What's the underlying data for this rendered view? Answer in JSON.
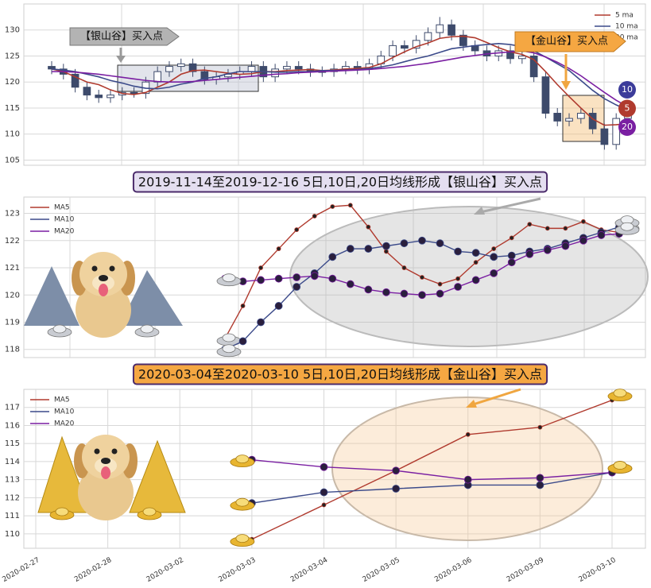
{
  "chart_data": [
    {
      "type": "candlestick",
      "open": [
        123,
        122.5,
        121.5,
        119,
        117.5,
        117,
        117.5,
        118,
        117.8,
        120,
        122,
        123,
        123.5,
        122,
        120.5,
        121,
        121.5,
        122,
        123,
        121,
        122.5,
        123,
        122.5,
        122,
        122,
        122.5,
        123,
        122.5,
        123.5,
        125,
        127,
        126.5,
        128,
        129.5,
        131,
        129,
        127,
        126,
        125,
        126,
        124.5,
        125,
        121,
        114,
        112.5,
        113,
        114,
        111,
        108,
        113
      ],
      "high": [
        124,
        123.5,
        122.5,
        120,
        118.5,
        118.5,
        119,
        119,
        121,
        123,
        124,
        124.5,
        124.5,
        123,
        122,
        122.5,
        123,
        124,
        124,
        123.5,
        124,
        124,
        123.5,
        123,
        123.5,
        124,
        124,
        124.5,
        126,
        128,
        128,
        129,
        130.5,
        132.5,
        132,
        130,
        128,
        127,
        127,
        127,
        126,
        126,
        122,
        115,
        114,
        115,
        115,
        112,
        114,
        115
      ],
      "low": [
        121.5,
        120.5,
        118,
        116.5,
        116,
        116,
        116.5,
        117,
        116.8,
        119,
        121,
        122,
        121,
        119.5,
        119.5,
        120,
        120.5,
        121,
        120,
        120,
        121.5,
        121.5,
        121,
        121,
        121,
        121.5,
        121.5,
        121.5,
        122.5,
        124,
        125.5,
        125.5,
        127,
        128.5,
        128,
        126,
        125,
        124,
        124,
        123.5,
        123.5,
        120,
        113,
        111.5,
        111.5,
        112,
        110,
        107,
        107,
        112
      ],
      "close": [
        122.5,
        121.5,
        119,
        117.5,
        117,
        117.5,
        118,
        117.8,
        120,
        122,
        123,
        123.5,
        122,
        120.5,
        121,
        121.5,
        122,
        123,
        121,
        122.5,
        123,
        122.5,
        122,
        122,
        122.5,
        123,
        122.5,
        123.5,
        125,
        127,
        126.5,
        128,
        129.5,
        131,
        129,
        127,
        126,
        125,
        126,
        124.5,
        125,
        121,
        114,
        112.5,
        113,
        114,
        111,
        108,
        113,
        114
      ],
      "series": [
        {
          "name": "5 ma",
          "color": "#b03a2e",
          "values": [
            122.5,
            122,
            121,
            120,
            119.5,
            118.5,
            117.8,
            117.6,
            118,
            119,
            120,
            121.5,
            122.2,
            122.3,
            122,
            121.7,
            121.5,
            121.6,
            122,
            122,
            122.2,
            122.3,
            122.4,
            122.2,
            122.3,
            122.5,
            122.6,
            122.8,
            123.5,
            124.7,
            125.8,
            126.8,
            127.5,
            128.4,
            128.7,
            128.8,
            128.5,
            127.6,
            126.6,
            125.8,
            125.3,
            124.3,
            122,
            119.5,
            117.2,
            115,
            112.9,
            111.7,
            111.8,
            112
          ]
        },
        {
          "name": "10 ma",
          "color": "#3b4a8a",
          "values": [
            122.5,
            122.3,
            122,
            121.5,
            121,
            120.3,
            119.8,
            119.2,
            118.8,
            118.7,
            119,
            119.6,
            120,
            120.7,
            121,
            121.6,
            122,
            122,
            122,
            121.9,
            121.9,
            122,
            122,
            122.2,
            122.2,
            122.3,
            122.4,
            122.6,
            122.9,
            123.3,
            123.9,
            124.5,
            125,
            125.7,
            126.4,
            126.7,
            127,
            127.2,
            127.4,
            127.2,
            126.8,
            126,
            124.8,
            123.5,
            122.2,
            120.3,
            118.4,
            116.8,
            115.6,
            114.6
          ]
        },
        {
          "name": "20 ma",
          "color": "#7a1fa2",
          "values": [
            122,
            122,
            121.9,
            121.7,
            121.5,
            121.2,
            120.9,
            120.6,
            120.3,
            120.1,
            120,
            120,
            120.1,
            120.3,
            120.5,
            120.7,
            120.9,
            121.1,
            121.3,
            121.5,
            121.6,
            121.8,
            121.9,
            122,
            122.1,
            122.2,
            122.3,
            122.4,
            122.6,
            122.8,
            123,
            123.3,
            123.6,
            124,
            124.4,
            124.8,
            125.1,
            125.4,
            125.6,
            125.8,
            126,
            125.6,
            124.8,
            123.8,
            122.6,
            121.2,
            119.6,
            118,
            116.5,
            115.2
          ]
        }
      ],
      "ylim": [
        104,
        135
      ],
      "yticks": [
        105,
        110,
        115,
        120,
        125,
        130
      ],
      "grid": true,
      "legend": "upper right",
      "annotations": [
        "【银山谷】买入点",
        "【金山谷】买入点"
      ],
      "badges": [
        "10",
        "5",
        "20"
      ]
    },
    {
      "type": "line",
      "title": "2019-11-14至2019-12-16 5日,10日,20日均线形成【银山谷】买入点",
      "series": [
        {
          "name": "MA5",
          "color": "#b03a2e",
          "values": [
            118.4,
            119.6,
            121.0,
            121.7,
            122.4,
            122.9,
            123.25,
            123.3,
            122.5,
            121.6,
            121.0,
            120.65,
            120.4,
            120.6,
            121.2,
            121.7,
            122.1,
            122.6,
            122.45,
            122.45,
            122.7,
            122.4,
            122.3
          ]
        },
        {
          "name": "MA10",
          "color": "#3b4a8a",
          "values": [
            118.0,
            118.3,
            119.0,
            119.6,
            120.3,
            120.8,
            121.4,
            121.7,
            121.7,
            121.8,
            121.9,
            122.0,
            121.9,
            121.6,
            121.55,
            121.4,
            121.45,
            121.6,
            121.7,
            121.9,
            122.1,
            122.3,
            122.5
          ]
        },
        {
          "name": "MA20",
          "color": "#7a1fa2",
          "values": [
            120.6,
            120.5,
            120.55,
            120.6,
            120.65,
            120.7,
            120.6,
            120.4,
            120.2,
            120.1,
            120.05,
            120.0,
            120.05,
            120.3,
            120.55,
            120.8,
            121.2,
            121.5,
            121.65,
            121.8,
            122.0,
            122.2,
            122.25
          ]
        }
      ],
      "ylim": [
        117.7,
        123.6
      ],
      "yticks": [
        118,
        119,
        120,
        121,
        122,
        123
      ],
      "grid": true,
      "legend": "upper left",
      "markers": true
    },
    {
      "type": "line",
      "title": "2020-03-04至2020-03-10 5日,10日,20日均线形成【金山谷】买入点",
      "categories": [
        "2020-02-27",
        "2020-02-28",
        "2020-03-02",
        "2020-03-03",
        "2020-03-04",
        "2020-03-05",
        "2020-03-06",
        "2020-03-09",
        "2020-03-10"
      ],
      "series": [
        {
          "name": "MA5",
          "color": "#b03a2e",
          "values": [
            null,
            null,
            null,
            109.7,
            111.6,
            113.5,
            115.5,
            115.9,
            117.4
          ]
        },
        {
          "name": "MA10",
          "color": "#3b4a8a",
          "values": [
            null,
            null,
            null,
            111.7,
            112.3,
            112.5,
            112.7,
            112.7,
            113.4
          ]
        },
        {
          "name": "MA20",
          "color": "#7a1fa2",
          "values": [
            null,
            null,
            null,
            114.1,
            113.7,
            113.5,
            113.0,
            113.1,
            113.4
          ]
        }
      ],
      "ylim": [
        109.2,
        118
      ],
      "yticks": [
        110,
        111,
        112,
        113,
        114,
        115,
        116,
        117
      ],
      "grid": true,
      "legend": "upper left",
      "markers": true
    }
  ]
}
